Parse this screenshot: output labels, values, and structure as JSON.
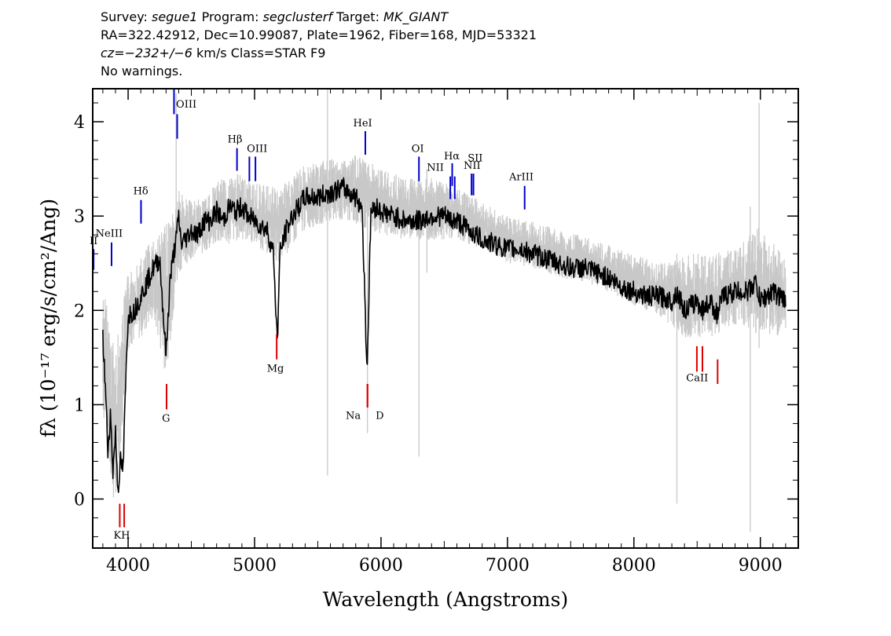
{
  "header": {
    "line1": {
      "survey_label": "Survey:",
      "survey": "segue1",
      "program_label": "Program:",
      "program": "segclusterf",
      "target_label": "Target:",
      "target": "MK_GIANT"
    },
    "line2": "RA=322.42912, Dec=10.99087, Plate=1962, Fiber=168, MJD=53321",
    "line3": {
      "cz": "cz=−232+/−6",
      "rest": " km/s Class=STAR F9"
    },
    "line4": "No warnings."
  },
  "colors": {
    "flux": "#000000",
    "error": "#c8c8c8",
    "emission": "#0000cc",
    "absorption": "#dd0000",
    "axes": "#000000"
  },
  "chart_data": {
    "type": "line",
    "xlabel": "Wavelength (Angstroms)",
    "ylabel": "fλ (10⁻¹⁷ erg/s/cm²/Ang)",
    "xlim": [
      3720,
      9300
    ],
    "ylim": [
      -0.52,
      4.35
    ],
    "x_ticks": [
      4000,
      5000,
      6000,
      7000,
      8000,
      9000
    ],
    "y_ticks": [
      0,
      1,
      2,
      3,
      4
    ],
    "series": [
      {
        "role": "flux",
        "x": [
          3800,
          3820,
          3840,
          3860,
          3880,
          3900,
          3920,
          3940,
          3960,
          3980,
          4000,
          4050,
          4100,
          4150,
          4200,
          4250,
          4300,
          4330,
          4360,
          4380,
          4400,
          4420,
          4450,
          4500,
          4550,
          4600,
          4650,
          4700,
          4750,
          4800,
          4850,
          4900,
          4950,
          5000,
          5050,
          5100,
          5150,
          5180,
          5200,
          5250,
          5300,
          5400,
          5500,
          5600,
          5700,
          5800,
          5850,
          5890,
          5920,
          5960,
          6000,
          6100,
          6200,
          6300,
          6400,
          6500,
          6560,
          6600,
          6700,
          6800,
          6900,
          7000,
          7100,
          7200,
          7300,
          7400,
          7500,
          7600,
          7700,
          7800,
          7900,
          8000,
          8100,
          8200,
          8300,
          8340,
          8400,
          8500,
          8542,
          8600,
          8662,
          8700,
          8800,
          8900,
          8960,
          9000,
          9100,
          9200
        ],
        "y": [
          1.7,
          1.2,
          0.5,
          0.9,
          0.3,
          0.7,
          0.1,
          0.4,
          0.3,
          1.2,
          1.95,
          2.0,
          2.15,
          2.3,
          2.45,
          2.55,
          1.5,
          2.3,
          2.6,
          2.75,
          3.0,
          2.7,
          2.75,
          2.85,
          2.8,
          2.95,
          2.95,
          3.05,
          2.95,
          3.1,
          3.05,
          3.1,
          3.0,
          2.95,
          2.9,
          2.85,
          2.6,
          1.65,
          2.6,
          2.85,
          3.0,
          3.2,
          3.2,
          3.25,
          3.3,
          3.2,
          3.1,
          1.35,
          3.05,
          3.1,
          3.05,
          3.0,
          2.95,
          2.95,
          3.0,
          3.0,
          2.95,
          2.95,
          2.85,
          2.75,
          2.7,
          2.65,
          2.65,
          2.6,
          2.55,
          2.5,
          2.45,
          2.45,
          2.4,
          2.35,
          2.25,
          2.2,
          2.15,
          2.15,
          2.1,
          2.2,
          2.0,
          2.1,
          2.0,
          2.1,
          1.95,
          2.15,
          2.2,
          2.2,
          2.3,
          2.1,
          2.2,
          2.1
        ]
      },
      {
        "role": "error_envelope",
        "x": [
          3800,
          3900,
          4000,
          4100,
          4200,
          4300,
          4400,
          4500,
          4600,
          4700,
          4800,
          4900,
          5000,
          5200,
          5400,
          5600,
          5800,
          6000,
          6200,
          6400,
          6600,
          6800,
          7000,
          7200,
          7400,
          7600,
          7800,
          8000,
          8200,
          8400,
          8600,
          8800,
          9000,
          9200
        ],
        "y_low": [
          0.9,
          -0.2,
          1.6,
          1.7,
          1.9,
          1.3,
          2.4,
          2.55,
          2.6,
          2.7,
          2.7,
          2.75,
          2.7,
          2.5,
          2.85,
          2.95,
          2.9,
          2.8,
          2.75,
          2.75,
          2.75,
          2.65,
          2.5,
          2.45,
          2.35,
          2.3,
          2.2,
          2.05,
          1.95,
          1.7,
          1.7,
          1.85,
          1.7,
          1.75
        ],
        "y_high": [
          2.3,
          1.6,
          2.4,
          2.55,
          2.8,
          2.9,
          3.3,
          3.15,
          3.2,
          3.35,
          3.45,
          3.45,
          3.35,
          3.3,
          3.55,
          3.6,
          3.65,
          3.5,
          3.4,
          3.4,
          3.3,
          3.15,
          3.0,
          2.95,
          2.85,
          2.8,
          2.7,
          2.6,
          2.5,
          2.6,
          2.6,
          2.65,
          2.9,
          2.55
        ]
      }
    ],
    "spikes": [
      {
        "x": 4380,
        "y_low": 2.9,
        "y_high": 4.3
      },
      {
        "x": 5577,
        "y_low": 0.25,
        "y_high": 4.35
      },
      {
        "x": 5893,
        "y_low": 0.7,
        "y_high": 3.3
      },
      {
        "x": 6300,
        "y_low": 0.45,
        "y_high": 3.2
      },
      {
        "x": 6363,
        "y_low": 2.4,
        "y_high": 3.5
      },
      {
        "x": 8340,
        "y_low": -0.05,
        "y_high": 2.6
      },
      {
        "x": 8920,
        "y_low": -0.35,
        "y_high": 3.1
      },
      {
        "x": 8990,
        "y_low": 1.6,
        "y_high": 4.2
      }
    ],
    "emission_lines": [
      {
        "label": "II",
        "x": 3727,
        "y_low": 2.43,
        "y_high": 2.65,
        "label_x": 3727,
        "label_y": 2.7
      },
      {
        "label": "NeIII",
        "x": 3869,
        "y_low": 2.47,
        "y_high": 2.72,
        "label_x": 3850,
        "label_y": 2.78
      },
      {
        "label": "Hδ",
        "x": 4102,
        "y_low": 2.92,
        "y_high": 3.17,
        "label_x": 4100,
        "label_y": 3.23
      },
      {
        "label": "OIII",
        "x": 4363,
        "y_low": 4.08,
        "y_high": 4.35,
        "label_x": 4460,
        "label_y": 4.15
      },
      {
        "label": "",
        "x": 4388,
        "y_low": 3.82,
        "y_high": 4.08,
        "label_x": 0,
        "label_y": 0
      },
      {
        "label": "Hβ",
        "x": 4861,
        "y_low": 3.48,
        "y_high": 3.72,
        "label_x": 4845,
        "label_y": 3.78
      },
      {
        "label": "OIII",
        "x": 4959,
        "y_low": 3.37,
        "y_high": 3.63,
        "label_x": 5020,
        "label_y": 3.68
      },
      {
        "label": "",
        "x": 5007,
        "y_low": 3.37,
        "y_high": 3.63,
        "label_x": 0,
        "label_y": 0
      },
      {
        "label": "HeI",
        "x": 5876,
        "y_low": 3.65,
        "y_high": 3.9,
        "label_x": 5855,
        "label_y": 3.95
      },
      {
        "label": "OI",
        "x": 6300,
        "y_low": 3.37,
        "y_high": 3.63,
        "label_x": 6290,
        "label_y": 3.68
      },
      {
        "label": "NII",
        "x": 6548,
        "y_low": 3.18,
        "y_high": 3.42,
        "label_x": 6430,
        "label_y": 3.48
      },
      {
        "label": "Hα",
        "x": 6563,
        "y_low": 3.32,
        "y_high": 3.56,
        "label_x": 6560,
        "label_y": 3.6
      },
      {
        "label": "",
        "x": 6583,
        "y_low": 3.18,
        "y_high": 3.42,
        "label_x": 0,
        "label_y": 0
      },
      {
        "label": "NII",
        "x": 6716,
        "y_low": 3.22,
        "y_high": 3.45,
        "label_x": 6720,
        "label_y": 3.5
      },
      {
        "label": "SII",
        "x": 6731,
        "y_low": 3.22,
        "y_high": 3.45,
        "label_x": 6745,
        "label_y": 3.58
      },
      {
        "label": "ArIII",
        "x": 7136,
        "y_low": 3.07,
        "y_high": 3.32,
        "label_x": 7110,
        "label_y": 3.38
      }
    ],
    "absorption_lines": [
      {
        "label": "K",
        "x": 3934,
        "y_low": -0.3,
        "y_high": -0.05,
        "label_x": 3915,
        "label_y": -0.42
      },
      {
        "label": "H",
        "x": 3969,
        "y_low": -0.3,
        "y_high": -0.05,
        "label_x": 3980,
        "label_y": -0.42
      },
      {
        "label": "G",
        "x": 4304,
        "y_low": 0.95,
        "y_high": 1.22,
        "label_x": 4300,
        "label_y": 0.82
      },
      {
        "label": "Mg",
        "x": 5175,
        "y_low": 1.48,
        "y_high": 1.75,
        "label_x": 5165,
        "label_y": 1.35
      },
      {
        "label": "Na",
        "x": 5893,
        "y_low": 0.97,
        "y_high": 1.22,
        "label_x": 5780,
        "label_y": 0.85
      },
      {
        "label": "D",
        "x": 5893,
        "y_low": 0.97,
        "y_high": 1.22,
        "label_x": 5990,
        "label_y": 0.85
      },
      {
        "label": "CaII",
        "x": 8498,
        "y_low": 1.35,
        "y_high": 1.62,
        "label_x": 8500,
        "label_y": 1.25
      },
      {
        "label": "",
        "x": 8542,
        "y_low": 1.35,
        "y_high": 1.62,
        "label_x": 0,
        "label_y": 0
      },
      {
        "label": "",
        "x": 8662,
        "y_low": 1.22,
        "y_high": 1.48,
        "label_x": 0,
        "label_y": 0
      }
    ]
  }
}
